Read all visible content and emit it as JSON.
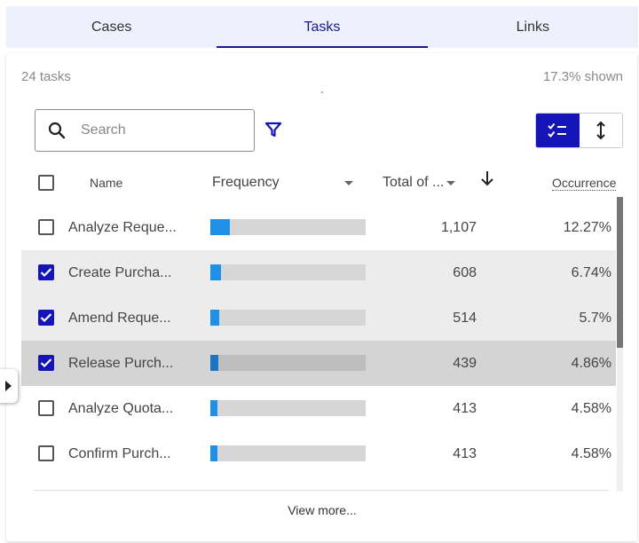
{
  "tabs": [
    {
      "label": "Cases",
      "active": false
    },
    {
      "label": "Tasks",
      "active": true
    },
    {
      "label": "Links",
      "active": false
    }
  ],
  "summary": {
    "count_label": "24 tasks",
    "shown_label": "17.3% shown"
  },
  "search": {
    "placeholder": "Search",
    "value": ""
  },
  "icons": {
    "search": "search-icon",
    "filter": "filter-icon",
    "selected_view": "checklist-icon",
    "sort_toggle": "vertical-arrows-icon",
    "expand": "caret-right-icon"
  },
  "table": {
    "columns": {
      "name": "Name",
      "frequency": "Frequency",
      "total": "Total of ...",
      "occurrence": "Occurrence"
    },
    "rows": [
      {
        "name": "Analyze Reque...",
        "frequency": 0.123,
        "total": "1,107",
        "occurrence": "12.27%",
        "checked": false
      },
      {
        "name": "Create Purcha...",
        "frequency": 0.067,
        "total": "608",
        "occurrence": "6.74%",
        "checked": true
      },
      {
        "name": "Amend Reque...",
        "frequency": 0.057,
        "total": "514",
        "occurrence": "5.7%",
        "checked": true
      },
      {
        "name": "Release Purch...",
        "frequency": 0.049,
        "total": "439",
        "occurrence": "4.86%",
        "checked": true
      },
      {
        "name": "Analyze Quota...",
        "frequency": 0.046,
        "total": "413",
        "occurrence": "4.58%",
        "checked": false
      },
      {
        "name": "Confirm Purch...",
        "frequency": 0.046,
        "total": "413",
        "occurrence": "4.58%",
        "checked": false
      }
    ]
  },
  "footer": {
    "view_more": "View more..."
  },
  "colors": {
    "accent": "#1414b8",
    "bar_fill": "#1e90e8",
    "bar_track": "#d6d6d6",
    "selected_row": "#ececec"
  }
}
